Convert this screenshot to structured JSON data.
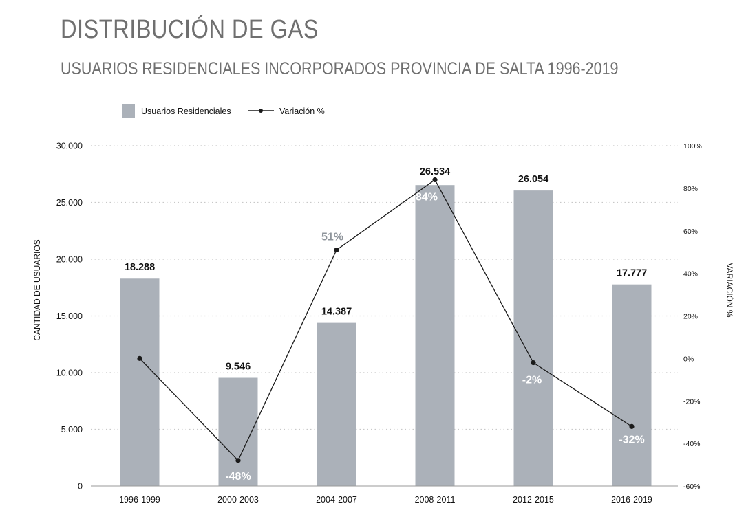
{
  "header": {
    "title": "DISTRIBUCIÓN DE GAS",
    "subtitle": "USUARIOS RESIDENCIALES INCORPORADOS PROVINCIA DE SALTA 1996-2019"
  },
  "colors": {
    "bar": "#abb1b9",
    "line": "#1a1a1a",
    "text_dark": "#111111",
    "label_light": "#ffffff",
    "label_grey": "#8e949b",
    "title_grey": "#6f6f6f",
    "grid": "#c8c8c8"
  },
  "chart_data": {
    "type": "bar",
    "categories": [
      "1996-1999",
      "2000-2003",
      "2004-2007",
      "2008-2011",
      "2012-2015",
      "2016-2019"
    ],
    "series": [
      {
        "name": "Usuarios Residenciales",
        "type": "bar",
        "axis": "left",
        "values": [
          18288,
          9546,
          14387,
          26534,
          26054,
          17777
        ],
        "labels": [
          "18.288",
          "9.546",
          "14.387",
          "26.534",
          "26.054",
          "17.777"
        ]
      },
      {
        "name": "Variación %",
        "type": "line",
        "axis": "right",
        "values": [
          0,
          -48,
          51,
          84,
          -2,
          -32
        ],
        "labels": [
          "",
          "-48%",
          "51%",
          "84%",
          "-2%",
          "-32%"
        ]
      }
    ],
    "ylabel": "CANTIDAD DE USUARIOS",
    "ylim": [
      0,
      30000
    ],
    "yticks": [
      0,
      5000,
      10000,
      15000,
      20000,
      25000,
      30000
    ],
    "ytick_labels": [
      "0",
      "5.000",
      "10.000",
      "15.000",
      "20.000",
      "25.000",
      "30.000"
    ],
    "y2label": "VARIACIÓN %",
    "y2lim": [
      -60,
      100
    ],
    "y2ticks": [
      -60,
      -40,
      -20,
      0,
      20,
      40,
      60,
      80,
      100
    ],
    "y2tick_labels": [
      "-60%",
      "-40%",
      "-20%",
      "0%",
      "20%",
      "40%",
      "60%",
      "80%",
      "100%"
    ],
    "grid": true,
    "legend_position": "top-left"
  }
}
